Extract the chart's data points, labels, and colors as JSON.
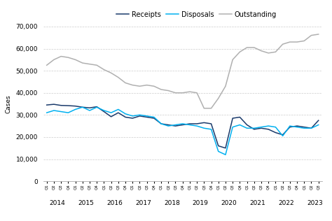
{
  "ylabel": "Cases",
  "ylim": [
    0,
    70000
  ],
  "yticks": [
    0,
    10000,
    20000,
    30000,
    40000,
    50000,
    60000,
    70000
  ],
  "legend_labels": [
    "Receipts",
    "Disposals",
    "Outstanding"
  ],
  "colors": {
    "receipts": "#1a3a6b",
    "disposals": "#00b0f0",
    "outstanding": "#b0b0b0"
  },
  "x_quarter_labels": [
    "Q1",
    "Q2",
    "Q3",
    "Q4",
    "Q1",
    "Q2",
    "Q3",
    "Q4",
    "Q1",
    "Q2",
    "Q3",
    "Q4",
    "Q1",
    "Q2",
    "Q3",
    "Q4",
    "Q1",
    "Q2",
    "Q3",
    "Q4",
    "Q1",
    "Q2",
    "Q3",
    "Q4",
    "Q1",
    "Q2",
    "Q3",
    "Q4",
    "Q1",
    "Q2",
    "Q3",
    "Q4",
    "Q1",
    "Q2",
    "Q3",
    "Q4",
    "Q1",
    "Q2",
    "Q3"
  ],
  "x_year_positions": [
    1.5,
    5.5,
    9.5,
    13.5,
    17.5,
    21.5,
    25.5,
    29.5,
    33.5,
    37.5
  ],
  "x_year_labels": [
    "2014",
    "2015",
    "2016",
    "2017",
    "2018",
    "2019",
    "2020",
    "2021",
    "2022",
    "2023"
  ],
  "receipts": [
    34500,
    34800,
    34300,
    34200,
    34000,
    33500,
    33200,
    33700,
    31500,
    29200,
    31000,
    29000,
    28500,
    29500,
    29000,
    28500,
    26000,
    25500,
    25000,
    25500,
    26000,
    26000,
    26500,
    26000,
    16000,
    15000,
    28500,
    29000,
    25500,
    23500,
    24000,
    23500,
    22000,
    21000,
    24500,
    25000,
    24500,
    24000,
    27500
  ],
  "disposals": [
    31000,
    32000,
    31500,
    31000,
    32500,
    33500,
    32000,
    33500,
    32000,
    31000,
    32500,
    30500,
    29500,
    30000,
    29500,
    29000,
    26000,
    25000,
    25500,
    26000,
    25500,
    25000,
    24000,
    23500,
    13500,
    12000,
    24500,
    25500,
    24000,
    24000,
    24500,
    25000,
    24500,
    20500,
    25000,
    24500,
    24000,
    24000,
    25500
  ],
  "outstanding": [
    52500,
    55000,
    56500,
    56000,
    55000,
    53500,
    53000,
    52500,
    50500,
    49000,
    47000,
    44500,
    43500,
    43000,
    43500,
    43000,
    41500,
    41000,
    40000,
    40000,
    40500,
    40000,
    33000,
    33000,
    37500,
    43000,
    55000,
    58500,
    60500,
    60500,
    59000,
    58000,
    58500,
    62000,
    63000,
    63000,
    63500,
    66000,
    66500
  ]
}
